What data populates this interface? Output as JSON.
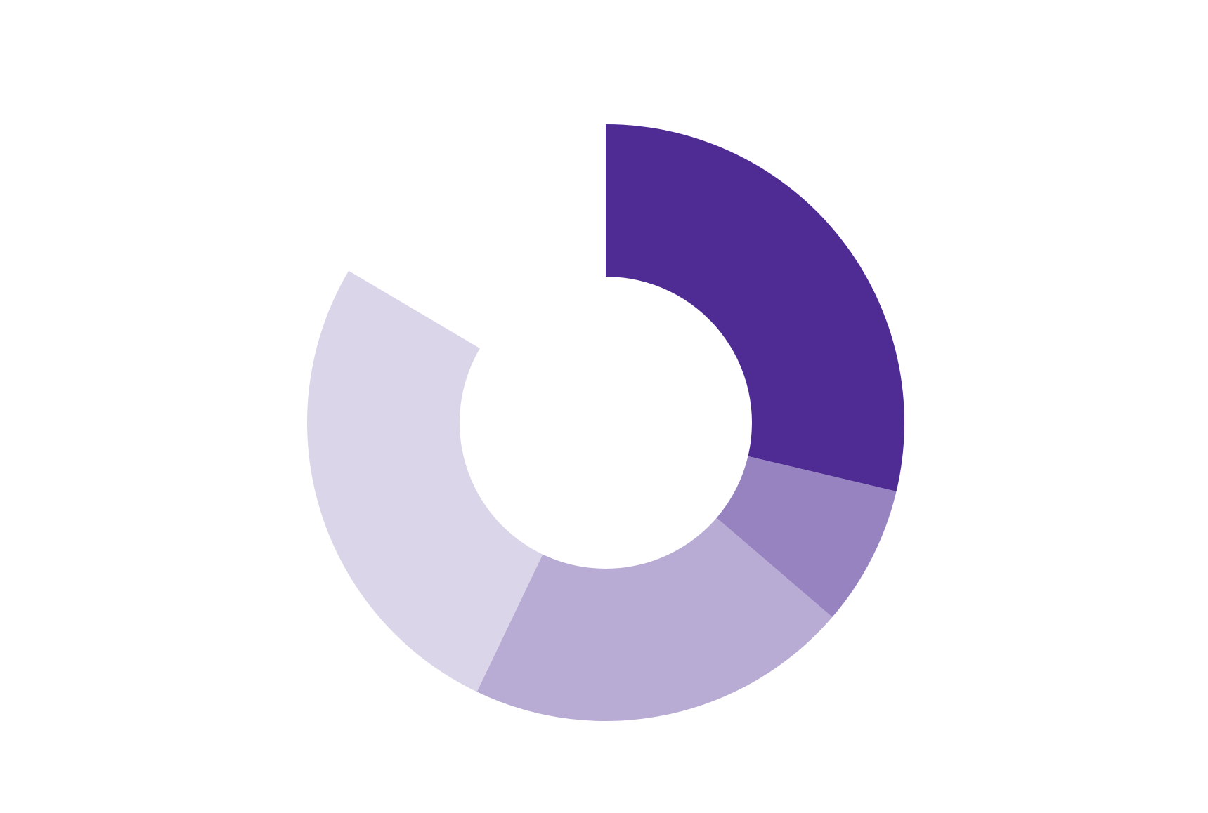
{
  "chart_data": {
    "type": "donut",
    "values": [
      28.7,
      7.6,
      20.8,
      26.4,
      16.5
    ],
    "colors": [
      "#4e2c93",
      "#9783c0",
      "#b8acd4",
      "#dbd5e9",
      "#ffffff"
    ],
    "start_angle": 0,
    "direction": "clockwise"
  }
}
